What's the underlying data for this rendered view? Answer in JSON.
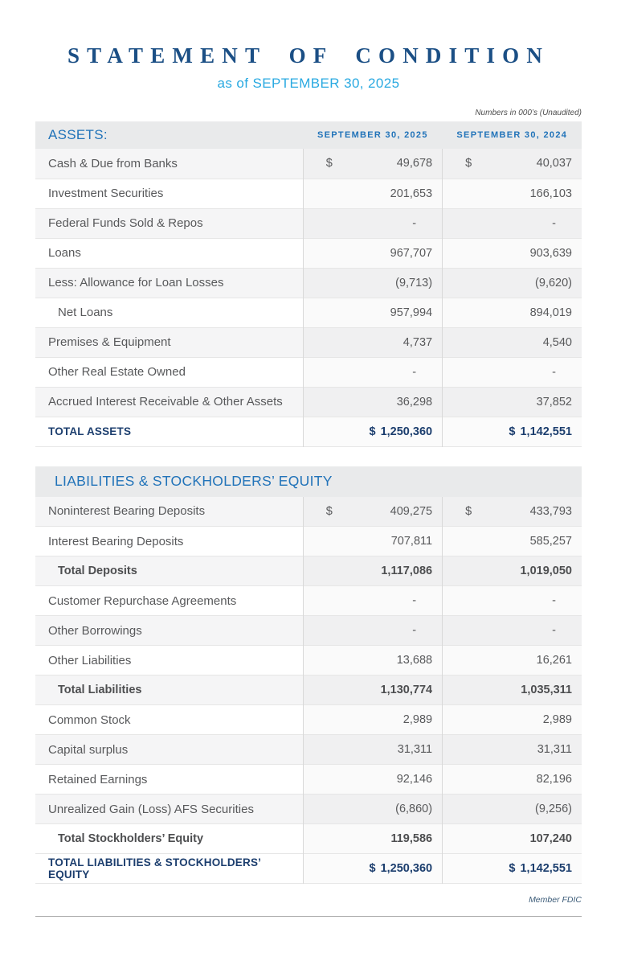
{
  "header": {
    "title": "STATEMENT OF CONDITION",
    "subtitle": "as of SEPTEMBER 30, 2025",
    "note": "Numbers in 000’s (Unaudited)"
  },
  "assets": {
    "section_label": "ASSETS:",
    "columns": [
      "SEPTEMBER 30, 2025",
      "SEPTEMBER 30, 2024"
    ],
    "rows": [
      {
        "label": "Cash & Due from Banks",
        "d1": "$",
        "v1": "49,678",
        "d2": "$",
        "v2": "40,037",
        "style": "normal"
      },
      {
        "label": "Investment Securities",
        "v1": "201,653",
        "v2": "166,103",
        "style": "normal"
      },
      {
        "label": "Federal Funds Sold & Repos",
        "v1": "-",
        "v2": "-",
        "style": "normal"
      },
      {
        "label": "Loans",
        "v1": "967,707",
        "v2": "903,639",
        "style": "normal"
      },
      {
        "label": "Less: Allowance for Loan Losses",
        "v1": "(9,713)",
        "v2": "(9,620)",
        "style": "normal"
      },
      {
        "label": "Net Loans",
        "v1": "957,994",
        "v2": "894,019",
        "style": "indent"
      },
      {
        "label": "Premises & Equipment",
        "v1": "4,737",
        "v2": "4,540",
        "style": "normal"
      },
      {
        "label": "Other Real Estate Owned",
        "v1": "-",
        "v2": "-",
        "style": "normal"
      },
      {
        "label": "Accrued Interest Receivable & Other Assets",
        "v1": "36,298",
        "v2": "37,852",
        "style": "normal"
      },
      {
        "label": "TOTAL ASSETS",
        "d1": "$",
        "v1": "1,250,360",
        "d2": "$",
        "v2": "1,142,551",
        "style": "grand"
      }
    ]
  },
  "liabilities": {
    "section_label": "LIABILITIES & STOCKHOLDERS’ EQUITY",
    "rows": [
      {
        "label": "Noninterest Bearing Deposits",
        "d1": "$",
        "v1": "409,275",
        "d2": "$",
        "v2": "433,793",
        "style": "normal"
      },
      {
        "label": "Interest Bearing Deposits",
        "v1": "707,811",
        "v2": "585,257",
        "style": "normal"
      },
      {
        "label": "Total Deposits",
        "v1": "1,117,086",
        "v2": "1,019,050",
        "style": "subtotal"
      },
      {
        "label": "Customer Repurchase Agreements",
        "v1": "-",
        "v2": "-",
        "style": "normal"
      },
      {
        "label": "Other Borrowings",
        "v1": "-",
        "v2": "-",
        "style": "normal"
      },
      {
        "label": "Other Liabilities",
        "v1": "13,688",
        "v2": "16,261",
        "style": "normal"
      },
      {
        "label": "Total Liabilities",
        "v1": "1,130,774",
        "v2": "1,035,311",
        "style": "subtotal"
      },
      {
        "label": "Common Stock",
        "v1": "2,989",
        "v2": "2,989",
        "style": "normal"
      },
      {
        "label": "Capital surplus",
        "v1": "31,311",
        "v2": "31,311",
        "style": "normal"
      },
      {
        "label": "Retained Earnings",
        "v1": "92,146",
        "v2": "82,196",
        "style": "normal"
      },
      {
        "label": "Unrealized Gain (Loss) AFS Securities",
        "v1": "(6,860)",
        "v2": "(9,256)",
        "style": "normal"
      },
      {
        "label": "Total Stockholders’ Equity",
        "v1": "119,586",
        "v2": "107,240",
        "style": "subtotal"
      },
      {
        "label": "TOTAL LIABILITIES & STOCKHOLDERS’ EQUITY",
        "d1": "$",
        "v1": "1,250,360",
        "d2": "$",
        "v2": "1,142,551",
        "style": "grand"
      }
    ]
  },
  "footer": {
    "member": "Member FDIC"
  },
  "colors": {
    "accent_navy": "#1c3e6e",
    "accent_blue": "#2173b9",
    "accent_cyan": "#29a9e1"
  }
}
